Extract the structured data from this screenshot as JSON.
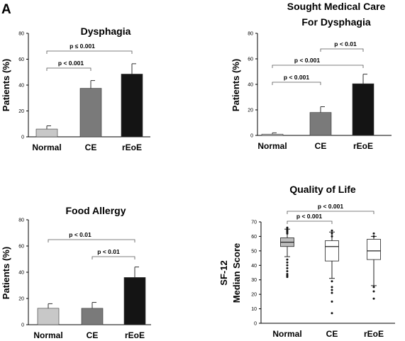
{
  "panel_letter": "A",
  "colors": {
    "normal": "#c8c8c8",
    "ce": "#7a7a7a",
    "reoe": "#141414",
    "axis": "#000000",
    "box": "#bdbdbd"
  },
  "chart_data": [
    {
      "type": "bar",
      "title": "Dysphagia",
      "ylabel": "Patients (%)",
      "categories": [
        "Normal",
        "CE",
        "rEoE"
      ],
      "values": [
        6,
        37.5,
        48.5
      ],
      "error": [
        2.5,
        6,
        8
      ],
      "ylim": [
        0,
        80
      ],
      "yticks": [
        0,
        20,
        40,
        60,
        80
      ],
      "annotations": [
        {
          "label": "p ≤ 0.001",
          "from": "Normal",
          "to": "rEoE"
        },
        {
          "label": "p < 0.001",
          "from": "Normal",
          "to": "CE"
        }
      ]
    },
    {
      "type": "bar",
      "title": [
        "Sought Medical Care",
        "For Dysphagia"
      ],
      "ylabel": "Patients (%)",
      "categories": [
        "Normal",
        "CE",
        "rEoE"
      ],
      "values": [
        1,
        18,
        40.5
      ],
      "error": [
        1,
        4.5,
        7.5
      ],
      "ylim": [
        0,
        80
      ],
      "yticks": [
        0,
        20,
        40,
        60,
        80
      ],
      "annotations": [
        {
          "label": "p < 0.01",
          "from": "CE",
          "to": "rEoE"
        },
        {
          "label": "p < 0.001",
          "from": "Normal",
          "to": "rEoE"
        },
        {
          "label": "p < 0.001",
          "from": "Normal",
          "to": "CE"
        }
      ]
    },
    {
      "type": "bar",
      "title": "Food Allergy",
      "ylabel": "Patients (%)",
      "categories": [
        "Normal",
        "CE",
        "rEoE"
      ],
      "values": [
        12.5,
        12.5,
        36
      ],
      "error": [
        3.5,
        4.5,
        8
      ],
      "ylim": [
        0,
        80
      ],
      "yticks": [
        0,
        20,
        40,
        60,
        80
      ],
      "annotations": [
        {
          "label": "p < 0.01",
          "from": "Normal",
          "to": "rEoE"
        },
        {
          "label": "p < 0.01",
          "from": "CE",
          "to": "rEoE"
        }
      ]
    },
    {
      "type": "box",
      "title": "Quality of Life",
      "ylabel": [
        "SF-12",
        "Median Score"
      ],
      "categories": [
        "Normal",
        "CE",
        "rEoE"
      ],
      "boxes": [
        {
          "q1": 53,
          "median": 56,
          "q3": 59,
          "whisker_low": 46,
          "whisker_high": 65,
          "outliers": [
            32,
            33,
            34,
            36,
            38,
            40,
            42,
            44,
            62,
            63,
            64,
            65,
            66
          ]
        },
        {
          "q1": 43,
          "median": 53,
          "q3": 57,
          "whisker_low": 31,
          "whisker_high": 63,
          "outliers": [
            7,
            15,
            21,
            23,
            25,
            29,
            60,
            62,
            64
          ]
        },
        {
          "q1": 44,
          "median": 50,
          "q3": 58,
          "whisker_low": 26,
          "whisker_high": 60,
          "outliers": [
            17,
            22,
            25,
            60,
            62
          ]
        }
      ],
      "ylim": [
        0,
        70
      ],
      "yticks": [
        0,
        10,
        20,
        30,
        40,
        50,
        60,
        70
      ],
      "annotations": [
        {
          "label": "p < 0.001",
          "from": "Normal",
          "to": "rEoE"
        },
        {
          "label": "p < 0.001",
          "from": "Normal",
          "to": "CE"
        }
      ]
    }
  ]
}
